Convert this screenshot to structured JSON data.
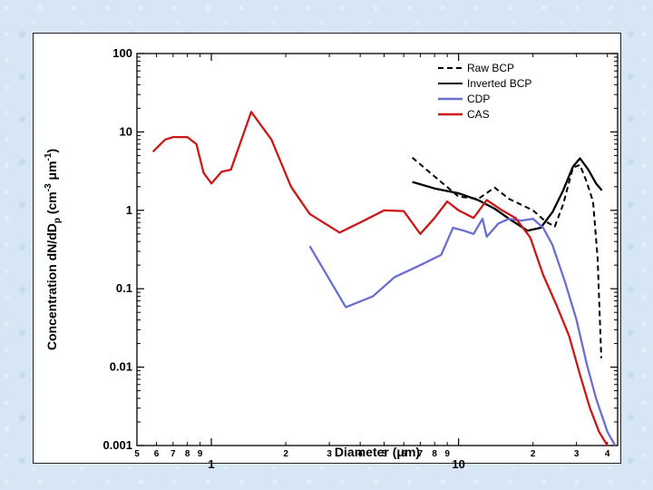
{
  "chart_data": {
    "type": "line",
    "title": "",
    "xlabel": "Diameter (μm)",
    "ylabel": "Concentration dN/dD",
    "ylabel_sub": "p",
    "ylabel_unit_open": " (cm",
    "ylabel_unit_exp1": "-3",
    "ylabel_unit_mid": " μm",
    "ylabel_unit_exp2": "-1",
    "ylabel_unit_close": ")",
    "x_scale": "log",
    "y_scale": "log",
    "xlim": [
      0.5,
      44
    ],
    "ylim": [
      0.001,
      100
    ],
    "y_ticks": [
      "0.001",
      "0.01",
      "0.1",
      "1",
      "10",
      "100"
    ],
    "x_major_ticks": [
      {
        "value": 1,
        "label": "1"
      },
      {
        "value": 10,
        "label": "10"
      }
    ],
    "x_minor_ticks": [
      {
        "value": 0.5,
        "label": "5"
      },
      {
        "value": 0.6,
        "label": "6"
      },
      {
        "value": 0.7,
        "label": "7"
      },
      {
        "value": 0.8,
        "label": "8"
      },
      {
        "value": 0.9,
        "label": "9"
      },
      {
        "value": 2,
        "label": "2"
      },
      {
        "value": 3,
        "label": "3"
      },
      {
        "value": 4,
        "label": "4"
      },
      {
        "value": 5,
        "label": "5"
      },
      {
        "value": 6,
        "label": "6"
      },
      {
        "value": 7,
        "label": "7"
      },
      {
        "value": 8,
        "label": "8"
      },
      {
        "value": 9,
        "label": "9"
      },
      {
        "value": 20,
        "label": "2"
      },
      {
        "value": 30,
        "label": "3"
      },
      {
        "value": 40,
        "label": "4"
      }
    ],
    "legend_position": "top-right",
    "series": [
      {
        "name": "Raw BCP",
        "color": "#000000",
        "dash": "dashed",
        "x": [
          6.5,
          8,
          10,
          12,
          14,
          16,
          20,
          22.5,
          24.5,
          26.5,
          29,
          31,
          33,
          35,
          36.5,
          37.8
        ],
        "y": [
          4.7,
          2.7,
          1.5,
          1.4,
          1.95,
          1.4,
          1.0,
          0.72,
          0.62,
          1.2,
          3.5,
          3.8,
          2.3,
          1.3,
          0.25,
          0.013
        ]
      },
      {
        "name": "Inverted BCP",
        "color": "#000000",
        "dash": "solid",
        "x": [
          6.5,
          8,
          10,
          12,
          14,
          16,
          19,
          21.5,
          24,
          26.5,
          29,
          31,
          33.5,
          36,
          38
        ],
        "y": [
          2.3,
          1.9,
          1.65,
          1.35,
          1.05,
          0.78,
          0.55,
          0.6,
          0.95,
          1.8,
          3.6,
          4.6,
          3.3,
          2.2,
          1.8
        ]
      },
      {
        "name": "CDP",
        "color": "#6a6ed0",
        "dash": "solid",
        "x": [
          2.5,
          3.5,
          4.5,
          5.5,
          7,
          8.5,
          9.5,
          10.5,
          11.5,
          12.5,
          13,
          14.5,
          16,
          18,
          20,
          22,
          24,
          27,
          30,
          33,
          36,
          40,
          43
        ],
        "y": [
          0.35,
          0.058,
          0.08,
          0.14,
          0.2,
          0.27,
          0.6,
          0.55,
          0.5,
          0.78,
          0.46,
          0.68,
          0.78,
          0.74,
          0.78,
          0.6,
          0.36,
          0.12,
          0.04,
          0.011,
          0.004,
          0.0015,
          0.001
        ]
      },
      {
        "name": "CAS",
        "color": "#cc1818",
        "dash": "solid",
        "x": [
          0.58,
          0.65,
          0.7,
          0.8,
          0.87,
          0.93,
          1.0,
          1.1,
          1.2,
          1.45,
          1.75,
          2.1,
          2.5,
          3.3,
          4,
          5,
          6,
          7,
          8,
          9,
          10,
          11.5,
          13,
          15,
          17,
          19.5,
          22,
          25,
          28,
          31,
          34,
          37,
          40
        ],
        "y": [
          5.6,
          8.0,
          8.6,
          8.6,
          7.0,
          3.0,
          2.2,
          3.1,
          3.3,
          18.0,
          8.0,
          2.0,
          0.9,
          0.52,
          0.7,
          1.0,
          0.98,
          0.5,
          0.8,
          1.3,
          1.0,
          0.8,
          1.35,
          1.0,
          0.8,
          0.45,
          0.15,
          0.06,
          0.025,
          0.008,
          0.003,
          0.0015,
          0.001
        ]
      }
    ]
  }
}
